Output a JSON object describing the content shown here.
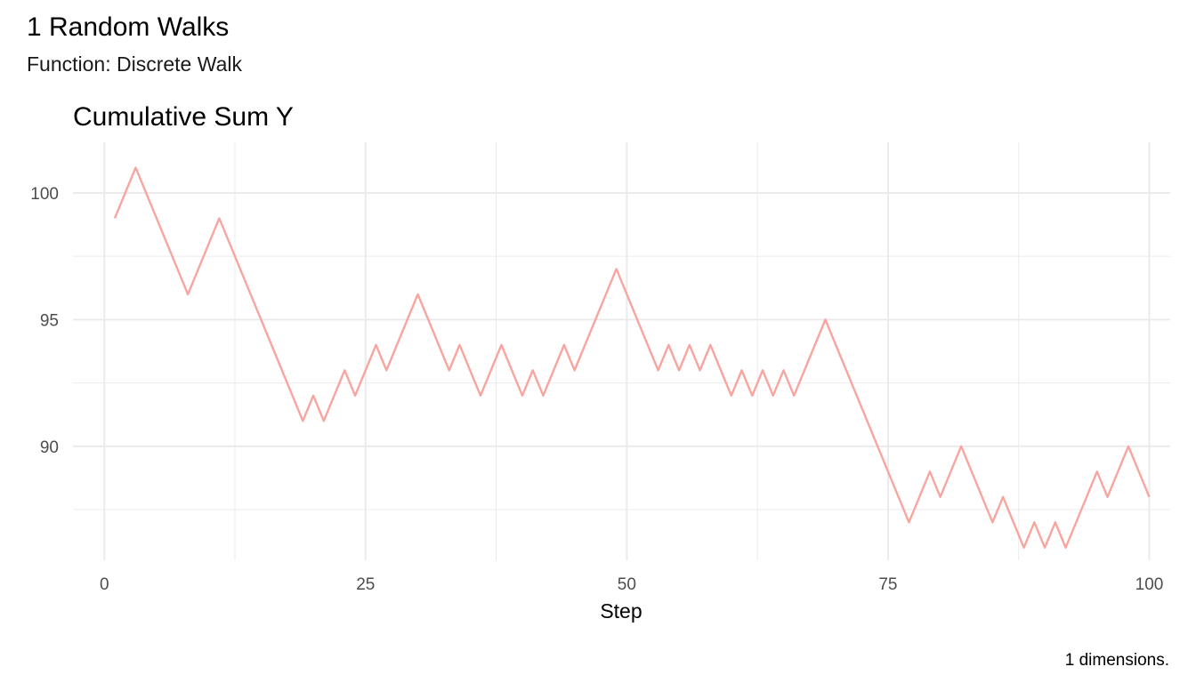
{
  "chart_data": {
    "type": "line",
    "title": "1 Random Walks",
    "subtitle": "Function: Discrete Walk",
    "panel_title": "Cumulative Sum Y",
    "xlabel": "Step",
    "ylabel": "",
    "caption": "1 dimensions.",
    "xlim": [
      -3,
      102
    ],
    "ylim": [
      85.5,
      102
    ],
    "x_ticks": [
      0,
      25,
      50,
      75,
      100
    ],
    "x_tick_labels": [
      "0",
      "25",
      "50",
      "75",
      "100"
    ],
    "x_minor_ticks": [
      12.5,
      37.5,
      62.5,
      87.5
    ],
    "y_ticks": [
      90,
      95,
      100
    ],
    "y_tick_labels": [
      "90",
      "95",
      "100"
    ],
    "y_minor_ticks": [
      87.5,
      92.5,
      97.5
    ],
    "grid": true,
    "legend": "none",
    "line_color": "#F8A5A0",
    "series": [
      {
        "x": [
          1,
          2,
          3,
          4,
          5,
          6,
          7,
          8,
          9,
          10,
          11,
          12,
          13,
          14,
          15,
          16,
          17,
          18,
          19,
          20,
          21,
          22,
          23,
          24,
          25,
          26,
          27,
          28,
          29,
          30,
          31,
          32,
          33,
          34,
          35,
          36,
          37,
          38,
          39,
          40,
          41,
          42,
          43,
          44,
          45,
          46,
          47,
          48,
          49,
          50,
          51,
          52,
          53,
          54,
          55,
          56,
          57,
          58,
          59,
          60,
          61,
          62,
          63,
          64,
          65,
          66,
          67,
          68,
          69,
          70,
          71,
          72,
          73,
          74,
          75,
          76,
          77,
          78,
          79,
          80,
          81,
          82,
          83,
          84,
          85,
          86,
          87,
          88,
          89,
          90,
          91,
          92,
          93,
          94,
          95,
          96,
          97,
          98,
          99,
          100
        ],
        "y": [
          99,
          100,
          101,
          100,
          99,
          98,
          97,
          96,
          97,
          98,
          99,
          98,
          97,
          96,
          95,
          94,
          93,
          92,
          91,
          92,
          91,
          92,
          93,
          92,
          93,
          94,
          93,
          94,
          95,
          96,
          95,
          94,
          93,
          94,
          93,
          92,
          93,
          94,
          93,
          92,
          93,
          92,
          93,
          94,
          93,
          94,
          95,
          96,
          97,
          96,
          95,
          94,
          93,
          94,
          93,
          94,
          93,
          94,
          93,
          92,
          93,
          92,
          93,
          92,
          93,
          92,
          93,
          94,
          95,
          94,
          93,
          92,
          91,
          90,
          89,
          88,
          87,
          88,
          89,
          88,
          89,
          90,
          89,
          88,
          87,
          88,
          87,
          86,
          87,
          86,
          87,
          86,
          87,
          88,
          89,
          88,
          89,
          90,
          89,
          88
        ]
      }
    ]
  }
}
